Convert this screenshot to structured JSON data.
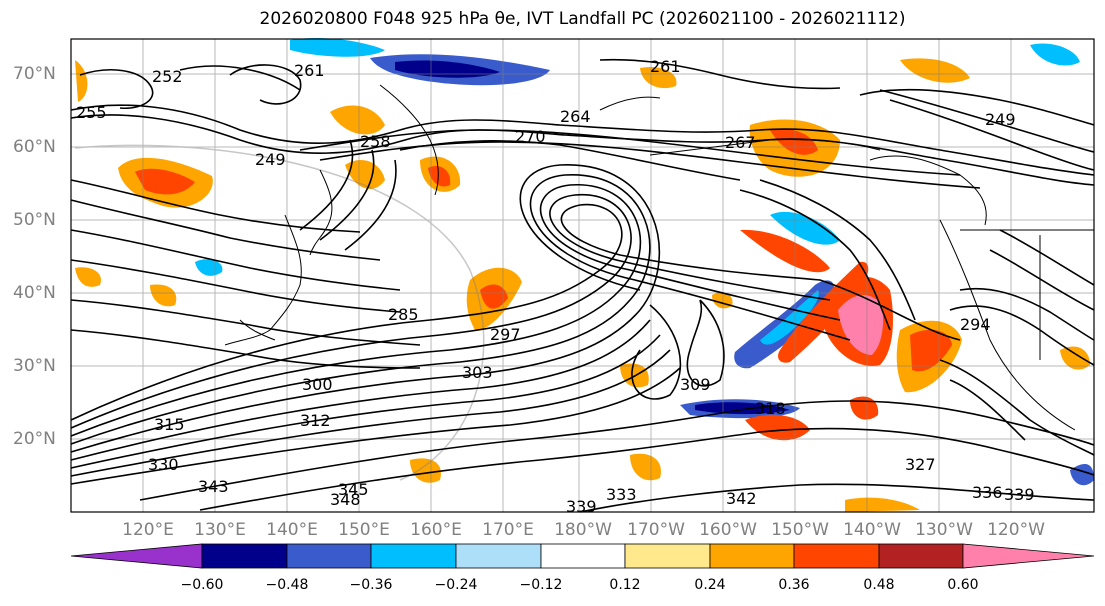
{
  "title": "2026020800 F048 925 hPa θe, IVT Landfall PC (2026021100 - 2026021112)",
  "map": {
    "lat_labels": [
      "70°N",
      "60°N",
      "50°N",
      "40°N",
      "30°N",
      "20°N"
    ],
    "lon_labels": [
      "120°E",
      "130°E",
      "140°E",
      "150°E",
      "160°E",
      "170°E",
      "180°W",
      "170°W",
      "160°W",
      "150°W",
      "140°W",
      "130°W",
      "120°W"
    ],
    "contour_labels": [
      "252",
      "255",
      "261",
      "249",
      "258",
      "261",
      "270",
      "264",
      "249",
      "267",
      "285",
      "297",
      "303",
      "300",
      "315",
      "312",
      "309",
      "318",
      "294",
      "327",
      "336",
      "339",
      "333",
      "342",
      "345",
      "348",
      "343",
      "339",
      "330"
    ],
    "colors": {
      "contour": "#000000",
      "coast": "#000000",
      "grid": "#808080"
    }
  },
  "colorbar": {
    "ticks": [
      "−0.60",
      "−0.48",
      "−0.36",
      "−0.24",
      "−0.12",
      "0.12",
      "0.24",
      "0.36",
      "0.48",
      "0.60"
    ],
    "colors": [
      "#9932CC",
      "#00008B",
      "#3A5BCB",
      "#00BFFF",
      "#ADDFF8",
      "#FFFFFF",
      "#FFE98C",
      "#FFA500",
      "#FF4500",
      "#B22222",
      "#FF80AA"
    ]
  }
}
